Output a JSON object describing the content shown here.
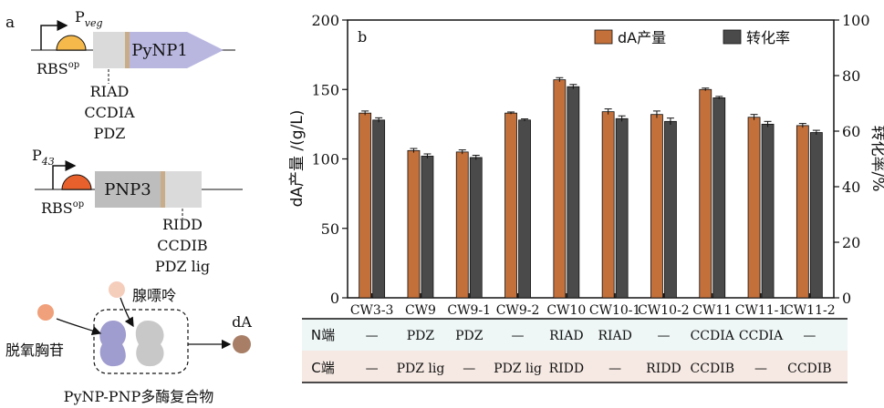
{
  "panel_a": {
    "label": "a",
    "construct1": {
      "promoter": "P",
      "promoter_sub": "veg",
      "rbs": "RBS",
      "rbs_sup": "op",
      "gene": "PyNP1",
      "tags": [
        "RIAD",
        "CCDIA",
        "PDZ"
      ]
    },
    "construct2": {
      "promoter": "P",
      "promoter_sub": "43",
      "rbs": "RBS",
      "rbs_sup": "op",
      "gene": "PNP3",
      "tags": [
        "RIDD",
        "CCDIB",
        "PDZ lig"
      ]
    },
    "complex": {
      "substrate": "脱氧胸苷",
      "cosubstrate": "腺嘌呤",
      "product": "dA",
      "caption": "PyNP-PNP多酶复合物"
    }
  },
  "colors": {
    "yield": "#c4703a",
    "conversion": "#4a4a4a",
    "n_row_bg": "#eef6f6",
    "c_row_bg": "#f6e9e3",
    "gene1": "#b9b7e0",
    "gene2": "#bdbdbd",
    "rbs1": "#f5b84a",
    "rbs2": "#e8612c",
    "enzyme1": "#9f9ccf",
    "enzyme2": "#c8c8c8",
    "substrate": "#f0a07a",
    "cosubstrate": "#f5cdbb",
    "product": "#a87e66"
  },
  "chart_data": {
    "type": "bar",
    "panel_label": "b",
    "categories": [
      "CW3-3",
      "CW9",
      "CW9-1",
      "CW9-2",
      "CW10",
      "CW10-1",
      "CW10-2",
      "CW11",
      "CW11-1",
      "CW11-2"
    ],
    "series": [
      {
        "name": "dA产量",
        "axis": "left",
        "values": [
          133,
          106,
          105,
          133,
          157,
          134,
          132,
          150,
          130,
          124
        ],
        "errors": [
          1.5,
          1.5,
          1.5,
          0.8,
          1.5,
          2,
          2.5,
          1,
          2,
          1.5
        ]
      },
      {
        "name": "转化率",
        "axis": "right",
        "values": [
          64,
          51,
          50.5,
          64,
          76,
          64.5,
          63.5,
          72,
          62.5,
          59.5
        ],
        "errors": [
          0.8,
          0.8,
          0.8,
          0.4,
          0.8,
          1,
          1.2,
          0.5,
          1,
          0.8
        ]
      }
    ],
    "ylabel_left": "dA产量 /(g/L)",
    "ylabel_right": "转化率/%",
    "ylim_left": [
      0,
      200
    ],
    "yticks_left": [
      "0",
      "50",
      "100",
      "150",
      "200"
    ],
    "ylim_right": [
      0,
      100
    ],
    "yticks_right": [
      "0",
      "20",
      "40",
      "60",
      "80",
      "100"
    ],
    "legend_position": "top-right",
    "grid": false
  },
  "table": {
    "rows": [
      {
        "label": "N端",
        "cells": [
          "—",
          "PDZ",
          "PDZ",
          "—",
          "RIAD",
          "RIAD",
          "—",
          "CCDIA",
          "CCDIA",
          "—"
        ]
      },
      {
        "label": "C端",
        "cells": [
          "—",
          "PDZ lig",
          "—",
          "PDZ lig",
          "RIDD",
          "—",
          "RIDD",
          "CCDIB",
          "—",
          "CCDIB"
        ]
      }
    ]
  }
}
